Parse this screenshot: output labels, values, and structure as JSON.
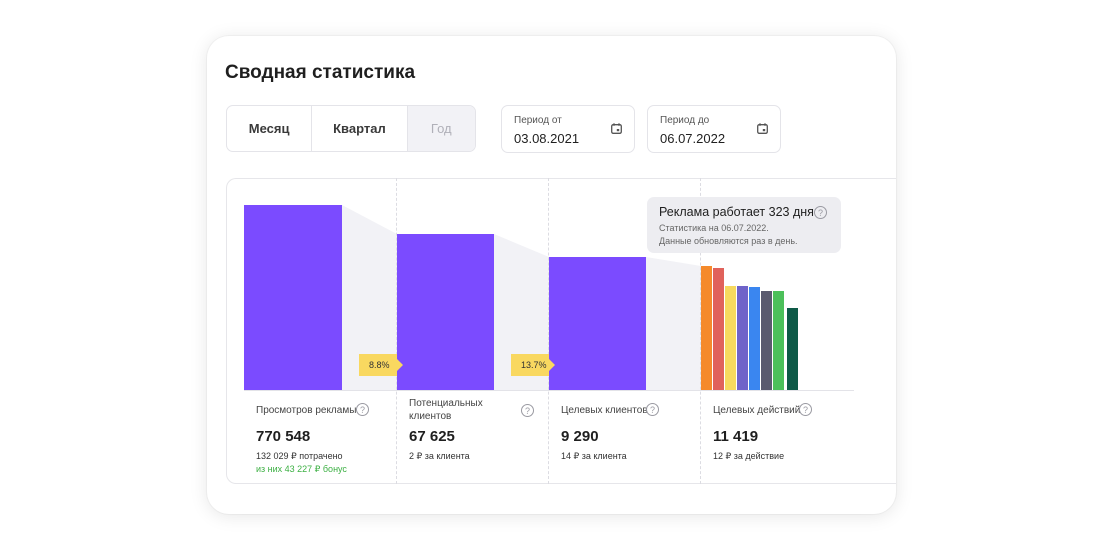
{
  "title": "Сводная статистика",
  "period_tabs": [
    {
      "label": "Месяц",
      "state": "normal"
    },
    {
      "label": "Квартал",
      "state": "normal"
    },
    {
      "label": "Год",
      "state": "disabled"
    }
  ],
  "date_from": {
    "label": "Период от",
    "value": "03.08.2021"
  },
  "date_to": {
    "label": "Период до",
    "value": "06.07.2022"
  },
  "tooltip": {
    "title": "Реклама работает 323 дня",
    "line1": "Статистика на 06.07.2022.",
    "line2": "Данные обновляются раз в день."
  },
  "conversions": [
    "8.8%",
    "13.7%"
  ],
  "metrics": [
    {
      "label": "Просмотров рекламы",
      "value": "770 548",
      "sub": "132 029 ₽ потрачено",
      "bonus": "из них 43 227 ₽ бонус"
    },
    {
      "label_line1": "Потенциальных",
      "label_line2": "клиентов",
      "value": "67 625",
      "sub": "2 ₽ за клиента"
    },
    {
      "label": "Целевых клиентов",
      "value": "9 290",
      "sub": "14 ₽ за клиента"
    },
    {
      "label": "Целевых действий",
      "value": "11 419",
      "sub": "12 ₽ за действие"
    }
  ],
  "colors": {
    "accent_bar": "#7b4bff",
    "badge": "#f9d860",
    "bonus_text": "#3cb043",
    "action_bars": [
      "#f58a2b",
      "#e0625b",
      "#f6d95e",
      "#6f63c9",
      "#3a86f0",
      "#5a5a6e",
      "#4cc05a",
      "#0e5a47"
    ]
  }
}
